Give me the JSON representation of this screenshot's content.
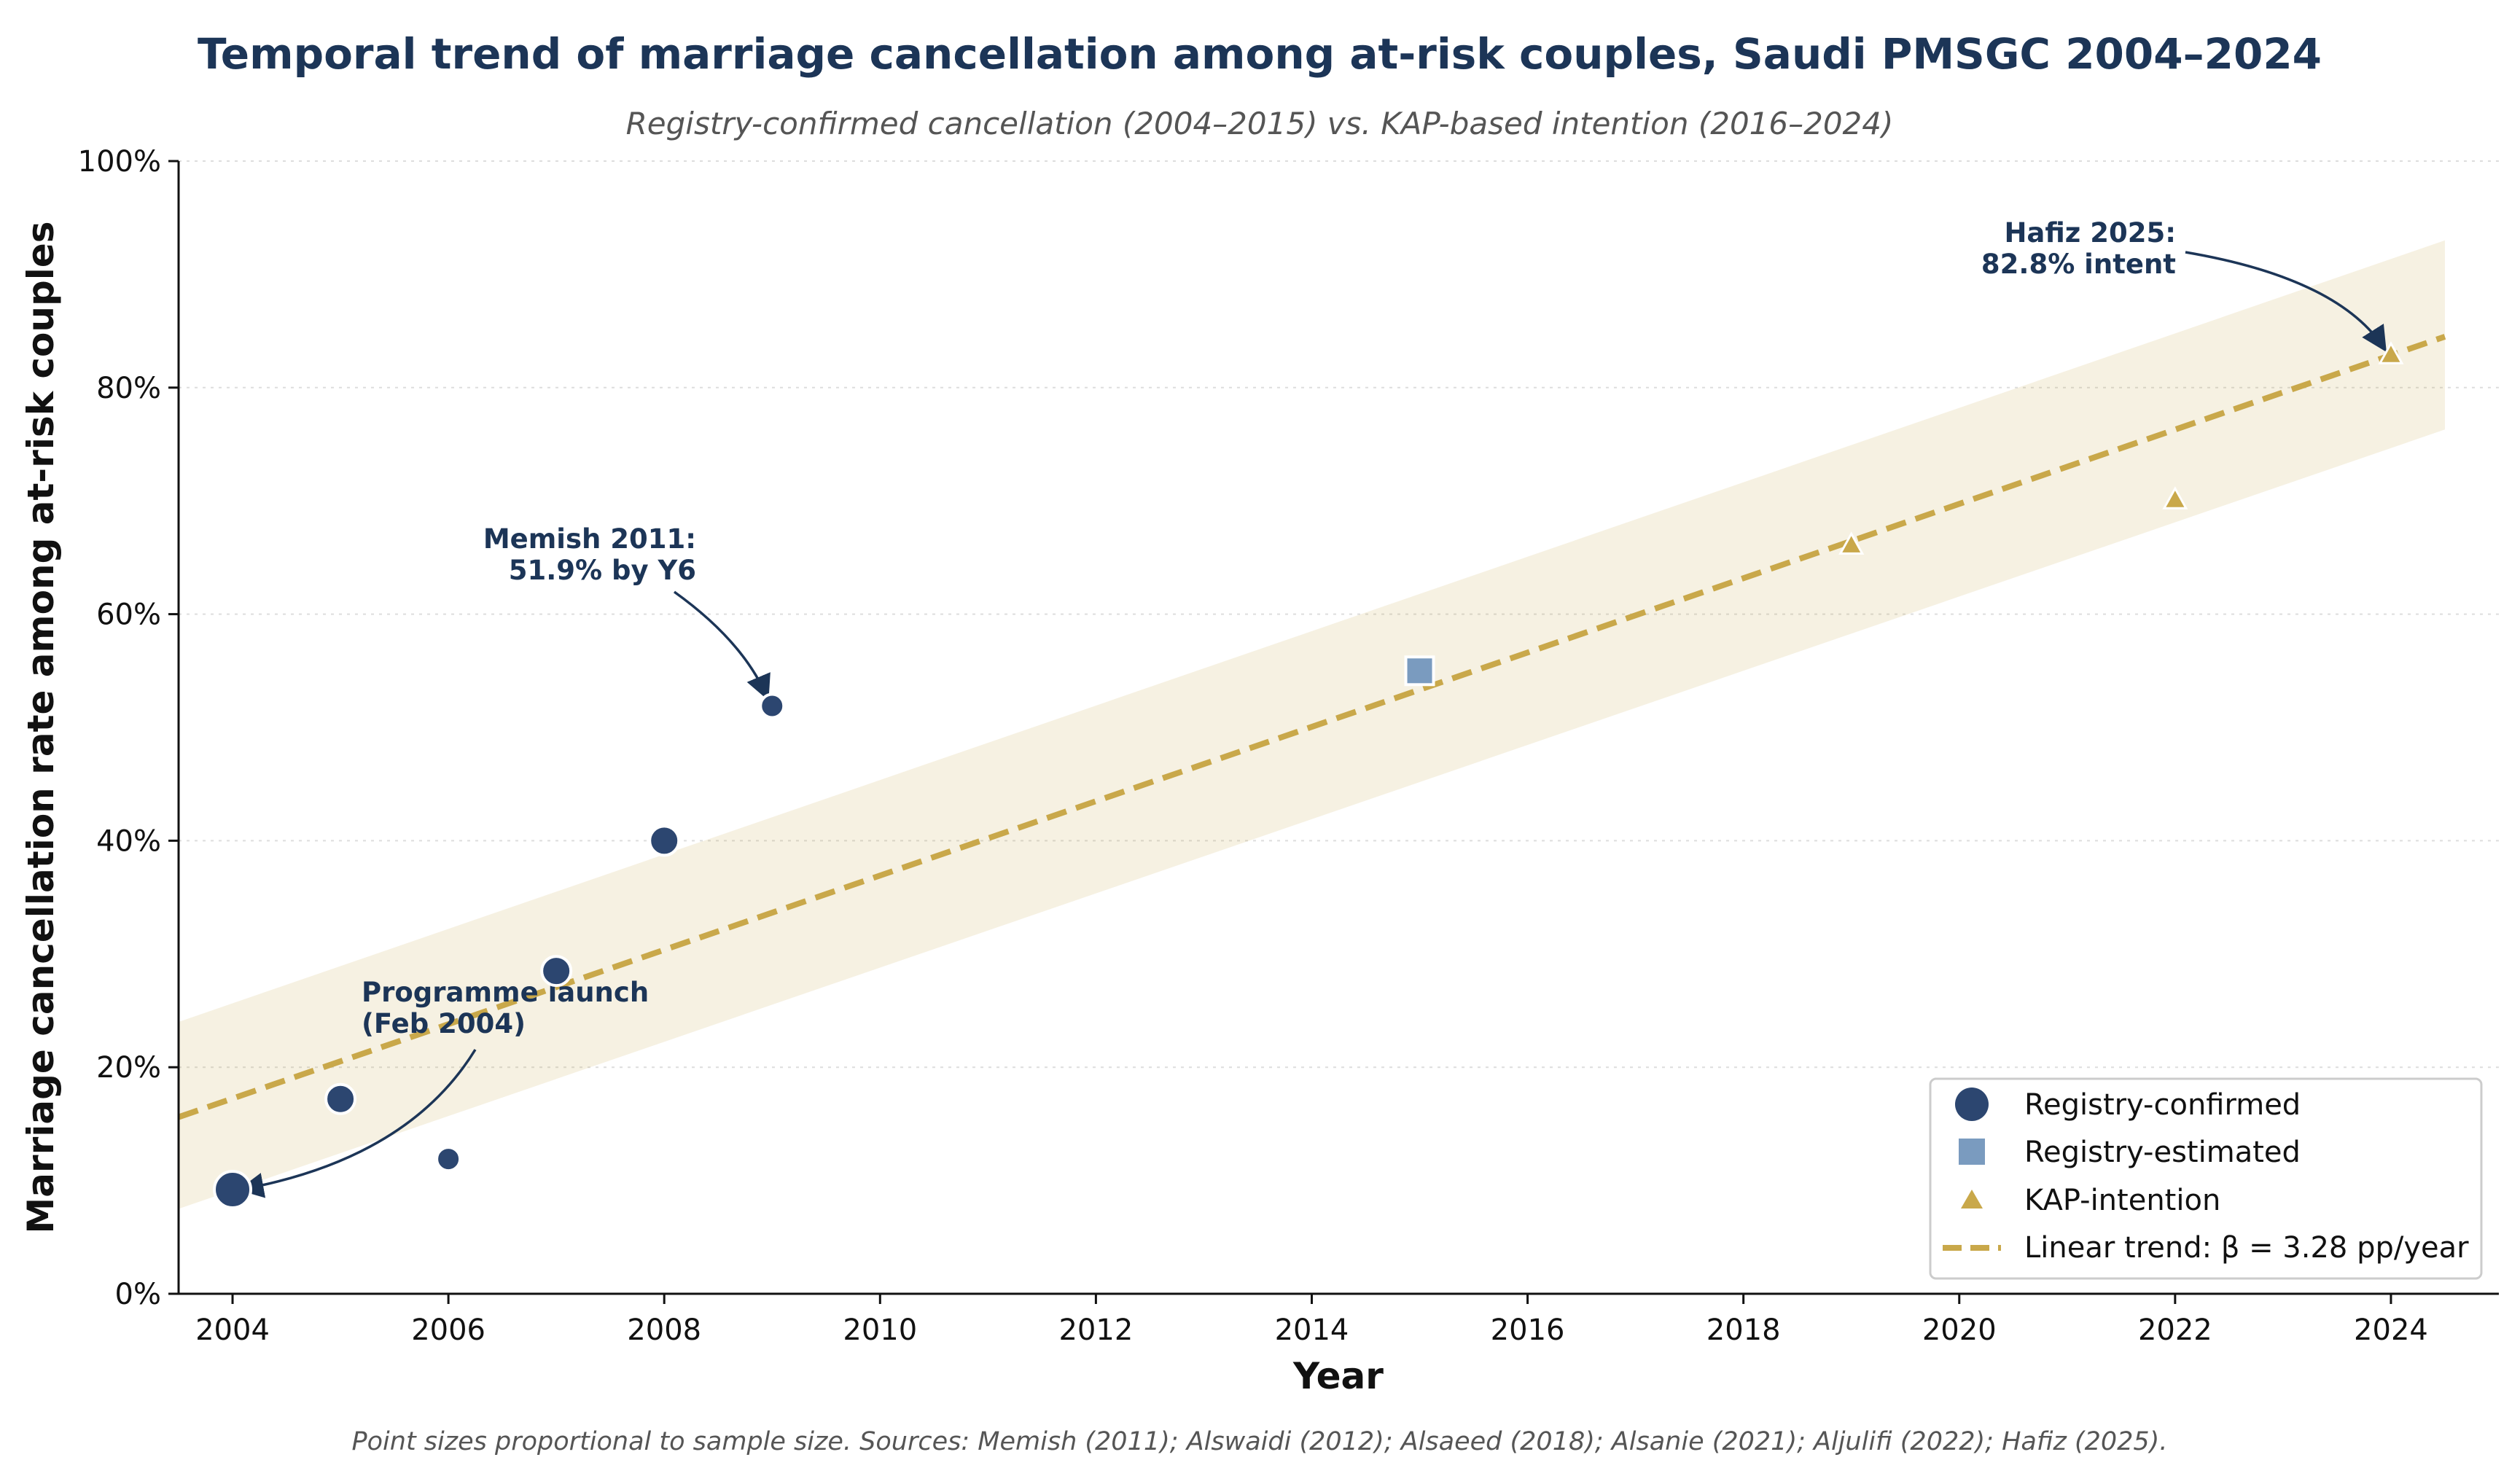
{
  "chart_data": {
    "type": "scatter",
    "title": "Temporal trend of marriage cancellation among at-risk couples, Saudi PMSGC 2004–2024",
    "subtitle": "Registry-confirmed cancellation (2004–2015) vs. KAP-based intention (2016–2024)",
    "xlabel": "Year",
    "ylabel": "Marriage cancellation rate among at-risk couples",
    "xlim": [
      2003.5,
      2025.0
    ],
    "ylim": [
      0,
      100
    ],
    "x_ticks": [
      "2004",
      "2006",
      "2008",
      "2010",
      "2012",
      "2014",
      "2016",
      "2018",
      "2020",
      "2022",
      "2024"
    ],
    "y_ticks": [
      "0%",
      "20%",
      "40%",
      "60%",
      "80%",
      "100%"
    ],
    "grid": "horizontal dotted",
    "legend_position": "lower-right",
    "series": [
      {
        "name": "Registry-confirmed",
        "marker": "circle",
        "color": "#2c4670",
        "points": [
          {
            "x": 2004,
            "y": 9.2,
            "size": "large"
          },
          {
            "x": 2005,
            "y": 17.2,
            "size": "medium"
          },
          {
            "x": 2006,
            "y": 11.9,
            "size": "small"
          },
          {
            "x": 2007,
            "y": 28.5,
            "size": "medium"
          },
          {
            "x": 2008,
            "y": 40.0,
            "size": "medium"
          },
          {
            "x": 2009,
            "y": 51.9,
            "size": "small"
          }
        ]
      },
      {
        "name": "Registry-estimated",
        "marker": "square",
        "color": "#7a9bbf",
        "points": [
          {
            "x": 2015,
            "y": 55.0
          }
        ]
      },
      {
        "name": "KAP-intention",
        "marker": "triangle",
        "color": "#c9a84a",
        "points": [
          {
            "x": 2019,
            "y": 66.0
          },
          {
            "x": 2022,
            "y": 70.0
          },
          {
            "x": 2024,
            "y": 82.8
          }
        ]
      }
    ],
    "trend": {
      "name": "Linear trend: β = 3.28 pp/year",
      "color": "#c9a84a",
      "x": [
        2003.5,
        2024.5
      ],
      "y": [
        15.6,
        84.5
      ],
      "band_lower": [
        7.5,
        76.3
      ],
      "band_upper": [
        24.0,
        93.0
      ]
    },
    "annotations": [
      {
        "lines": [
          "Programme launch",
          "(Feb 2004)"
        ],
        "target": {
          "x": 2004,
          "y": 9.2
        }
      },
      {
        "lines": [
          "Memish 2011:",
          "51.9% by Y6"
        ],
        "target": {
          "x": 2009,
          "y": 51.9
        }
      },
      {
        "lines": [
          "Hafiz 2025:",
          "82.8% intent"
        ],
        "target": {
          "x": 2024,
          "y": 82.8
        }
      }
    ],
    "footnote": "Point sizes proportional to sample size. Sources: Memish (2011); Alswaidi (2012); Alsaeed (2018); Alsanie (2021); Aljulifi (2022); Hafiz (2025)."
  }
}
